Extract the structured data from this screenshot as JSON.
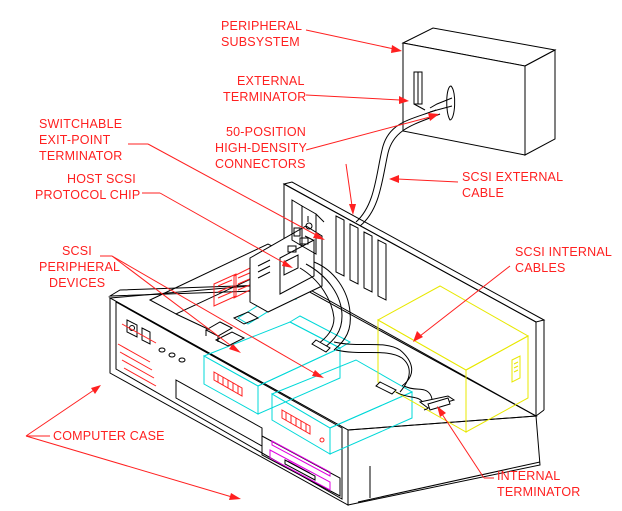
{
  "labels": {
    "peripheral_subsystem": [
      "PERIPHERAL",
      "SUBSYSTEM"
    ],
    "external_terminator": [
      "EXTERNAL",
      "TERMINATOR"
    ],
    "switchable_terminator": [
      "SWITCHABLE",
      "EXIT-POINT",
      "TERMINATOR"
    ],
    "connectors": [
      "50-POSITION",
      "HIGH-DENSITY",
      "CONNECTORS"
    ],
    "host_chip": [
      "HOST SCSI",
      "PROTOCOL CHIP"
    ],
    "external_cable": [
      "SCSI EXTERNAL",
      "CABLE"
    ],
    "peripheral_devices": [
      "SCSI",
      "PERIPHERAL",
      "DEVICES"
    ],
    "internal_cables": [
      "SCSI INTERNAL",
      "CABLES"
    ],
    "computer_case": [
      "COMPUTER CASE"
    ],
    "internal_terminator": [
      "INTERNAL",
      "TERMINATOR"
    ]
  },
  "colors": {
    "label": "#ff2020",
    "line": "#000000",
    "drive_outline": "#00d8d8",
    "power_supply": "#e8e800",
    "floppy": "#e000e0"
  }
}
